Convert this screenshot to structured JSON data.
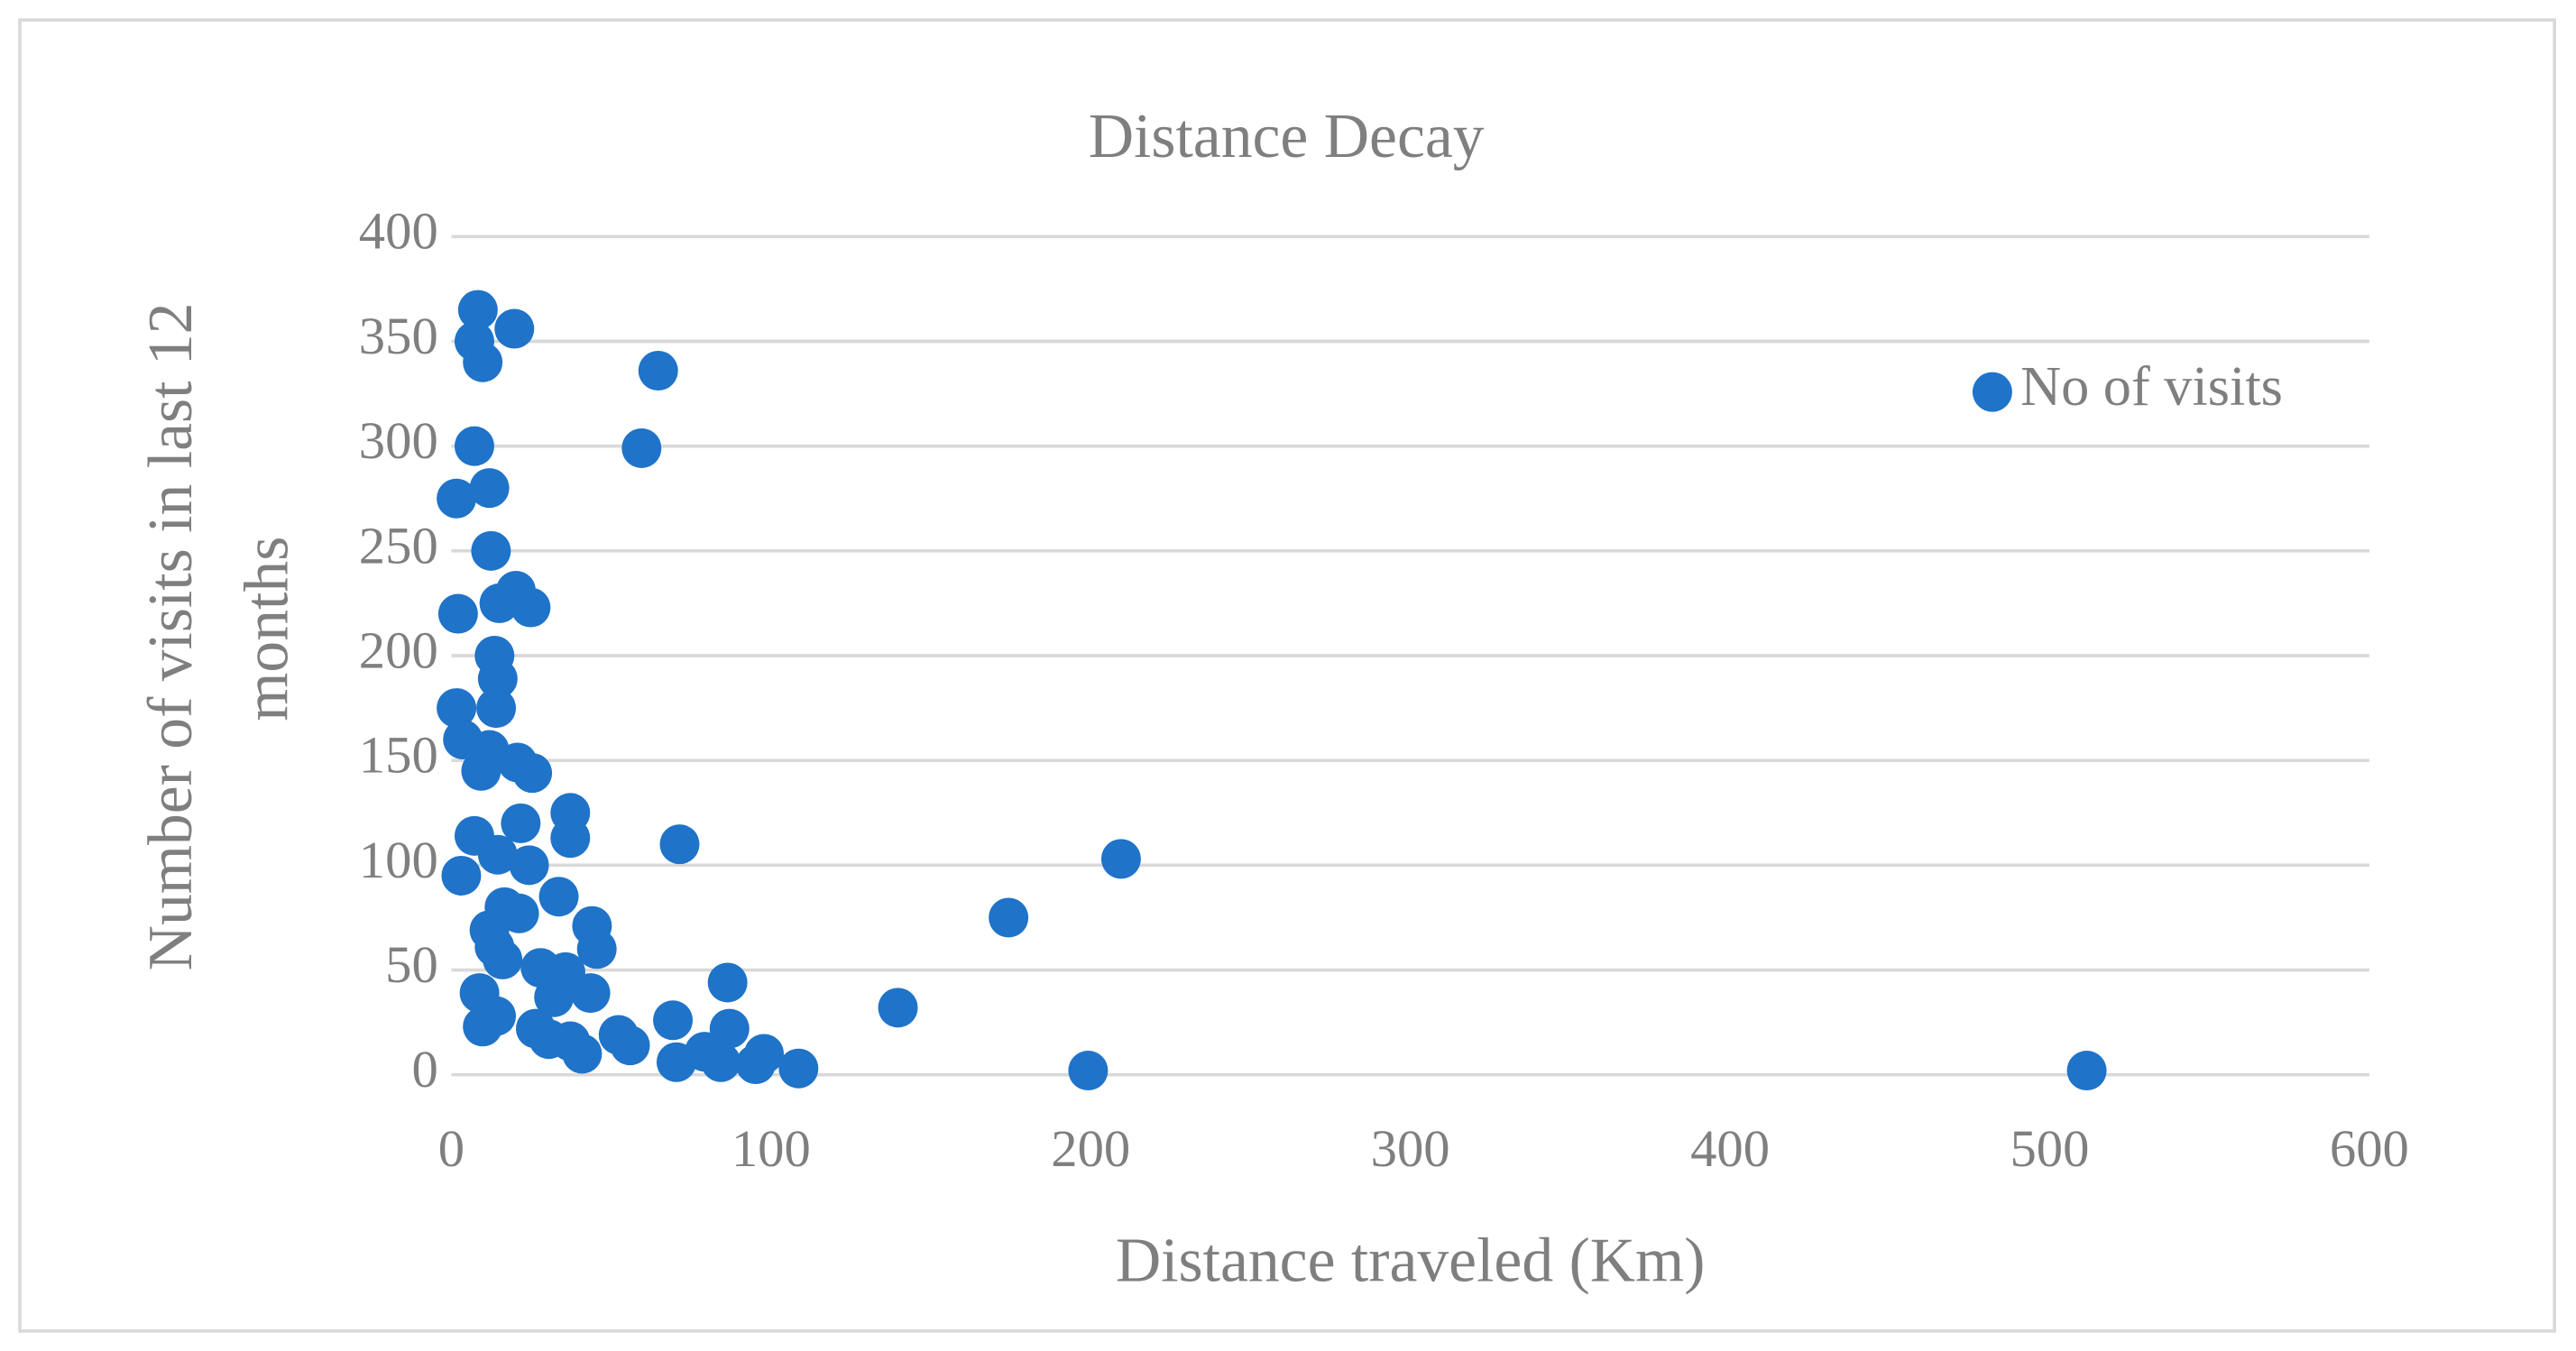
{
  "chart_data": {
    "type": "scatter",
    "title": "Distance Decay",
    "x_label": "Distance traveled (Km)",
    "y_label": "Number of visits in last 12 months",
    "xlim": [
      0,
      600
    ],
    "xticks": [
      0,
      100,
      200,
      300,
      400,
      500,
      600
    ],
    "ylim": [
      0,
      400
    ],
    "yticks": [
      0,
      50,
      100,
      150,
      200,
      250,
      300,
      350,
      400
    ],
    "grid": true,
    "legend": "upper right",
    "series": [
      {
        "name": "No of visits",
        "color": "#1f73c8",
        "x": [
          8.3,
          7.2,
          9.8,
          19.7,
          64.7,
          7.2,
          59.5,
          1.6,
          11.9,
          12.4,
          2.1,
          15,
          20.2,
          24.8,
          13.5,
          14.5,
          14,
          1.6,
          3.6,
          11.9,
          9.3,
          20.7,
          25.3,
          37.2,
          37.2,
          21.7,
          7.2,
          3.1,
          14.5,
          24.3,
          71.4,
          209.5,
          174.3,
          33.6,
          16.6,
          21.2,
          11.9,
          13.5,
          16,
          44,
          45.5,
          27.9,
          35.7,
          43.5,
          8.8,
          86.4,
          32.1,
          14,
          9.8,
          26.4,
          30.5,
          37.2,
          40.9,
          52.3,
          55.9,
          69.3,
          87,
          70.4,
          79.2,
          84.3,
          97.8,
          95.2,
          108.6,
          139.7,
          199.2,
          511.6
        ],
        "values": [
          365,
          350,
          340,
          356,
          336,
          300,
          299,
          275,
          280,
          250,
          220,
          225,
          231,
          223,
          200,
          189,
          175,
          175,
          160,
          155,
          145,
          149,
          144,
          125,
          113,
          120,
          114,
          95,
          105,
          100,
          110,
          103,
          75,
          85,
          80,
          77,
          69,
          61,
          55,
          71,
          60,
          51,
          49,
          39,
          39,
          44,
          37,
          28,
          23,
          22,
          17,
          16,
          10,
          19,
          14,
          26,
          22,
          6,
          11,
          6,
          10,
          5,
          3,
          32,
          2,
          2
        ]
      }
    ]
  }
}
